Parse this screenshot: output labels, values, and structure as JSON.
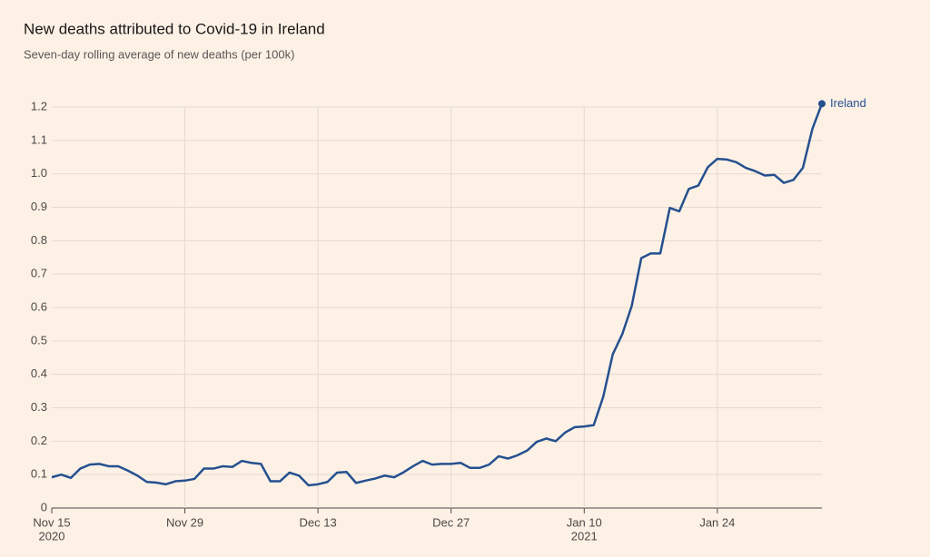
{
  "chart_data": {
    "type": "line",
    "title": "New deaths attributed to Covid-19 in Ireland",
    "subtitle": "Seven-day rolling average of new deaths (per 100k)",
    "x": [
      "2020-11-15",
      "2020-11-16",
      "2020-11-17",
      "2020-11-18",
      "2020-11-19",
      "2020-11-20",
      "2020-11-21",
      "2020-11-22",
      "2020-11-23",
      "2020-11-24",
      "2020-11-25",
      "2020-11-26",
      "2020-11-27",
      "2020-11-28",
      "2020-11-29",
      "2020-11-30",
      "2020-12-01",
      "2020-12-02",
      "2020-12-03",
      "2020-12-04",
      "2020-12-05",
      "2020-12-06",
      "2020-12-07",
      "2020-12-08",
      "2020-12-09",
      "2020-12-10",
      "2020-12-11",
      "2020-12-12",
      "2020-12-13",
      "2020-12-14",
      "2020-12-15",
      "2020-12-16",
      "2020-12-17",
      "2020-12-18",
      "2020-12-19",
      "2020-12-20",
      "2020-12-21",
      "2020-12-22",
      "2020-12-23",
      "2020-12-24",
      "2020-12-25",
      "2020-12-26",
      "2020-12-27",
      "2020-12-28",
      "2020-12-29",
      "2020-12-30",
      "2020-12-31",
      "2021-01-01",
      "2021-01-02",
      "2021-01-03",
      "2021-01-04",
      "2021-01-05",
      "2021-01-06",
      "2021-01-07",
      "2021-01-08",
      "2021-01-09",
      "2021-01-10",
      "2021-01-11",
      "2021-01-12",
      "2021-01-13",
      "2021-01-14",
      "2021-01-15",
      "2021-01-16",
      "2021-01-17",
      "2021-01-18",
      "2021-01-19",
      "2021-01-20",
      "2021-01-21",
      "2021-01-22",
      "2021-01-23",
      "2021-01-24",
      "2021-01-25",
      "2021-01-26",
      "2021-01-27",
      "2021-01-28",
      "2021-01-29",
      "2021-01-30",
      "2021-01-31",
      "2021-02-01",
      "2021-02-02",
      "2021-02-03",
      "2021-02-04"
    ],
    "series": [
      {
        "name": "Ireland",
        "color": "#25508f",
        "values": [
          0.092,
          0.1,
          0.09,
          0.118,
          0.13,
          0.132,
          0.125,
          0.125,
          0.112,
          0.097,
          0.078,
          0.076,
          0.071,
          0.08,
          0.082,
          0.087,
          0.118,
          0.118,
          0.125,
          0.123,
          0.141,
          0.135,
          0.132,
          0.08,
          0.08,
          0.106,
          0.097,
          0.068,
          0.071,
          0.078,
          0.106,
          0.108,
          0.075,
          0.082,
          0.088,
          0.097,
          0.092,
          0.107,
          0.125,
          0.141,
          0.13,
          0.132,
          0.132,
          0.135,
          0.12,
          0.12,
          0.13,
          0.155,
          0.148,
          0.158,
          0.172,
          0.198,
          0.208,
          0.2,
          0.226,
          0.242,
          0.244,
          0.248,
          0.333,
          0.46,
          0.52,
          0.605,
          0.748,
          0.762,
          0.762,
          0.898,
          0.888,
          0.955,
          0.965,
          1.02,
          1.045,
          1.043,
          1.035,
          1.018,
          1.008,
          0.995,
          0.997,
          0.973,
          0.982,
          1.018,
          1.135,
          1.21
        ]
      }
    ],
    "xlim": [
      "2020-11-15",
      "2021-02-04"
    ],
    "xticks": [
      {
        "value": "2020-11-15",
        "label": "Nov 15",
        "year": "2020"
      },
      {
        "value": "2020-11-29",
        "label": "Nov 29"
      },
      {
        "value": "2020-12-13",
        "label": "Dec 13"
      },
      {
        "value": "2020-12-27",
        "label": "Dec 27"
      },
      {
        "value": "2021-01-10",
        "label": "Jan 10",
        "year": "2021"
      },
      {
        "value": "2021-01-24",
        "label": "Jan 24"
      }
    ],
    "ylim": [
      0,
      1.2
    ],
    "yticks": [
      0,
      0.1,
      0.2,
      0.3,
      0.4,
      0.5,
      0.6,
      0.7,
      0.8,
      0.9,
      {
        "value": 1,
        "label": "1.0"
      },
      1.1,
      1.2
    ],
    "grid": true
  }
}
